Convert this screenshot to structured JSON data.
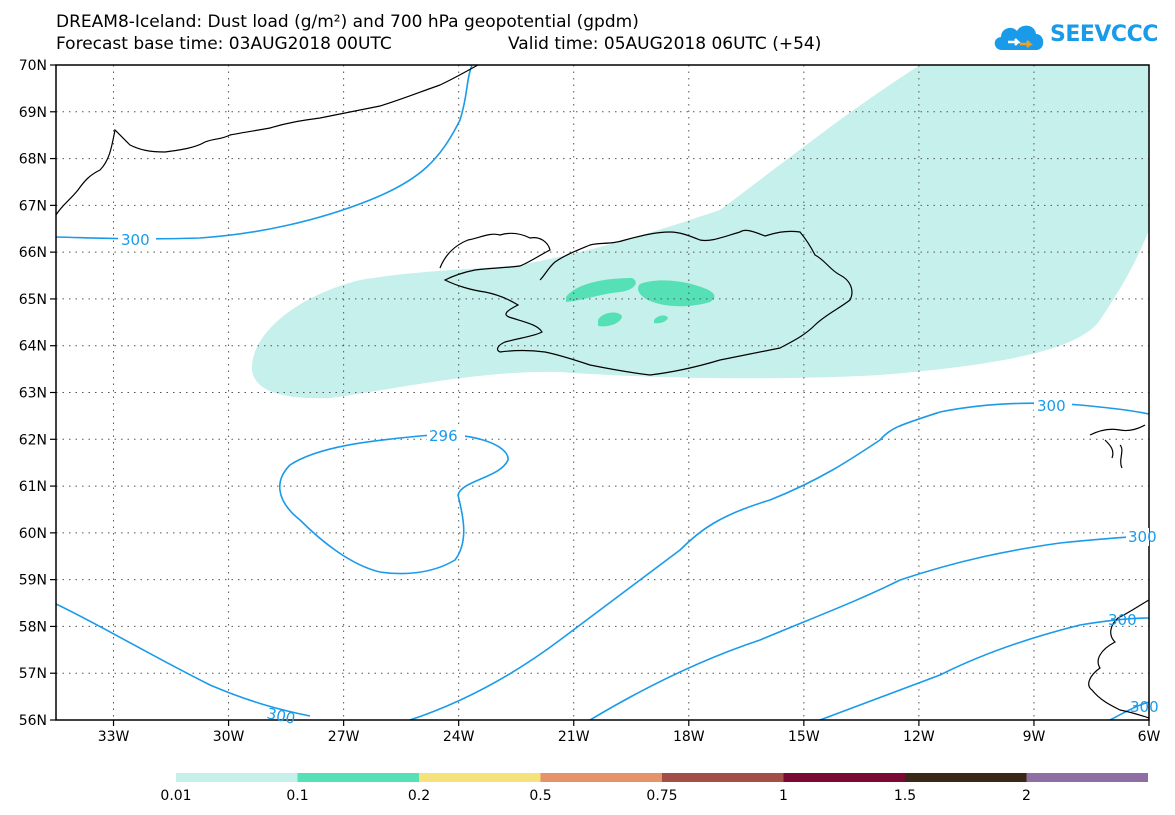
{
  "title": {
    "line1": "DREAM8-Iceland: Dust load (g/m²) and 700 hPa geopotential (gpdm)",
    "base_time": "Forecast base time: 03AUG2018 00UTC",
    "valid_time": "Valid time: 05AUG2018 06UTC (+54)"
  },
  "logo": {
    "text": "SEEVCCC",
    "icon": "cloud-logo-icon"
  },
  "map": {
    "lon_range": [
      -34.5,
      -6
    ],
    "lat_range": [
      56,
      70
    ],
    "lat_ticks": [
      "70N",
      "69N",
      "68N",
      "67N",
      "66N",
      "65N",
      "64N",
      "63N",
      "62N",
      "61N",
      "60N",
      "59N",
      "58N",
      "57N",
      "56N"
    ],
    "lon_ticks": [
      "33W",
      "30W",
      "27W",
      "24W",
      "21W",
      "18W",
      "15W",
      "12W",
      "9W",
      "6W"
    ],
    "grid": "dotted",
    "contour_labels": [
      "300",
      "296",
      "300",
      "300",
      "300",
      "300",
      "300"
    ],
    "colors": {
      "contour": "#1a9bea",
      "dust_low": "#c5f0eb",
      "dust_mid": "#55e0b6",
      "coast": "#000000"
    }
  },
  "colorbar": {
    "labels": [
      "0.01",
      "0.1",
      "0.2",
      "0.5",
      "0.75",
      "1",
      "1.5",
      "2"
    ],
    "colors": [
      "#c5f0eb",
      "#55e0b6",
      "#f5e27a",
      "#e6936b",
      "#a34f48",
      "#7a0a33",
      "#3a2817",
      "#8f6ea3"
    ]
  }
}
